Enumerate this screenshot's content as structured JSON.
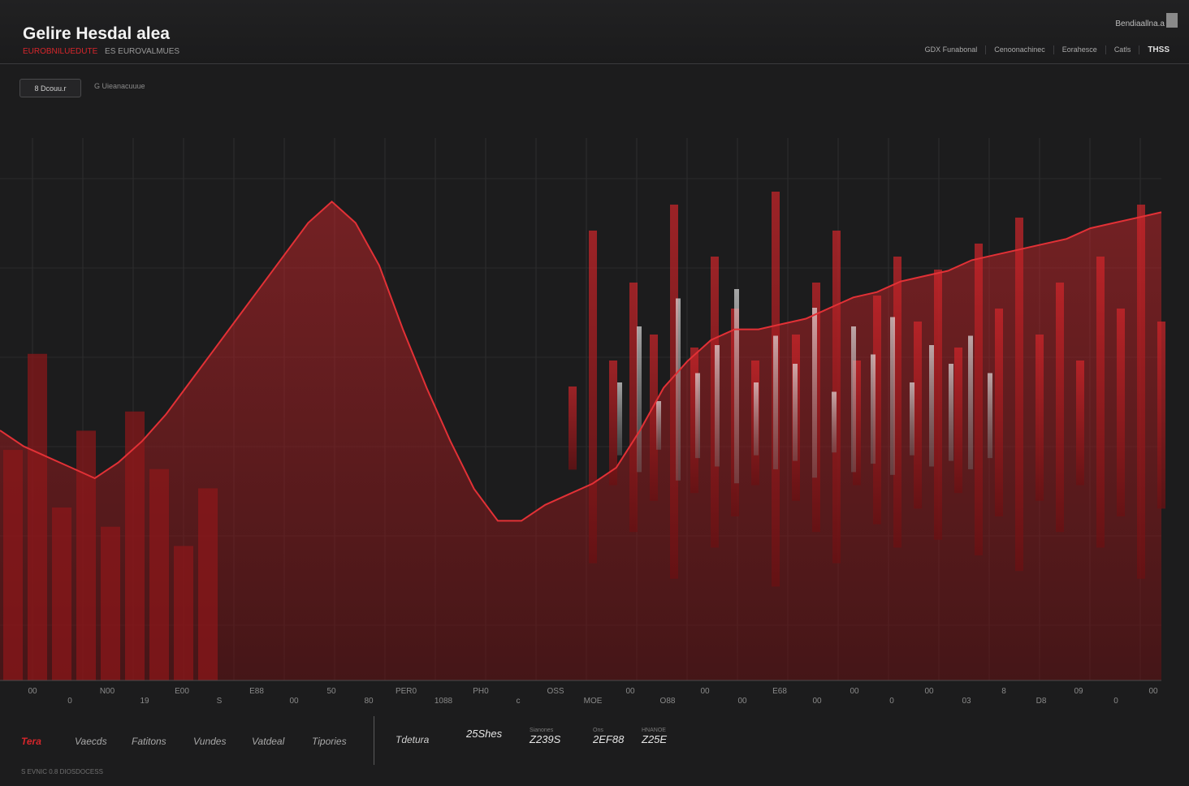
{
  "header": {
    "title": "Gelire Hesdal alea",
    "subtitle_red": "EUROBNILUEDUTE",
    "subtitle": "ES EUROVALMUES",
    "top_right": "Bendiaallna.a",
    "nav": [
      "GDX Funabonal",
      "Cenoonachinec",
      "Eorahesce",
      "Catls"
    ],
    "badge": "THSS"
  },
  "controls": {
    "filter_button": "8 Dcouu.r",
    "filter_label": "G Uieanacuuue"
  },
  "colors": {
    "background": "#1c1c1d",
    "accent_red": "#d7262b",
    "dark_red": "#8f1719",
    "grey_series": "#c8c8c8"
  },
  "chart_data": {
    "type": "area",
    "x_tick_labels": [
      "00",
      "0",
      "N00",
      "19",
      "E00",
      "S",
      "E88",
      "00",
      "50",
      "80",
      "PER0",
      "1088",
      "PH0",
      "c",
      "OSS",
      "MOE",
      "00",
      "O88",
      "00",
      "00",
      "E68",
      "00",
      "00",
      "0",
      "00",
      "03",
      "8",
      "D8",
      "09",
      "0",
      "00"
    ],
    "grid": true,
    "legend": "none",
    "series": [
      {
        "color": "#d7262b",
        "style": "line",
        "values": [
          0.47,
          0.44,
          0.42,
          0.4,
          0.38,
          0.41,
          0.45,
          0.5,
          0.56,
          0.62,
          0.68,
          0.74,
          0.8,
          0.86,
          0.9,
          0.86,
          0.78,
          0.66,
          0.55,
          0.45,
          0.36,
          0.3,
          0.3,
          0.33,
          0.35,
          0.37,
          0.4,
          0.47,
          0.55,
          0.6,
          0.64,
          0.66,
          0.66,
          0.67,
          0.68,
          0.7,
          0.72,
          0.73,
          0.75,
          0.76,
          0.77,
          0.79,
          0.8,
          0.81,
          0.82,
          0.83,
          0.85,
          0.86,
          0.87,
          0.88
        ]
      },
      {
        "color": "#d7262b",
        "style": "spikes",
        "values": [
          0.2,
          0.8,
          0.3,
          0.6,
          0.4,
          0.9,
          0.35,
          0.7,
          0.5,
          0.3,
          0.95,
          0.4,
          0.6,
          0.8,
          0.3,
          0.55,
          0.7,
          0.45,
          0.65,
          0.35,
          0.75,
          0.5,
          0.85,
          0.4,
          0.6,
          0.3,
          0.7,
          0.5,
          0.9,
          0.45
        ]
      },
      {
        "color": "#c8c8c8",
        "style": "spikes",
        "values": [
          0.3,
          0.6,
          0.2,
          0.75,
          0.35,
          0.5,
          0.8,
          0.3,
          0.55,
          0.4,
          0.7,
          0.25,
          0.6,
          0.45,
          0.65,
          0.3,
          0.5,
          0.4,
          0.55,
          0.35
        ]
      }
    ]
  },
  "categories": [
    "Tera",
    "Vaecds",
    "Fatitons",
    "Vundes",
    "Vatdeal",
    "Tipories"
  ],
  "stats": {
    "label": "Tdetura",
    "items": [
      {
        "caption": "",
        "value": "25Shes"
      },
      {
        "caption": "Sianones",
        "value": "Z239S"
      },
      {
        "caption": "Ons",
        "value": "2EF88"
      },
      {
        "caption": "HNANOE",
        "value": "Z25E"
      }
    ]
  },
  "footer": "S EVNIC 0.8 DIOSDOCESS"
}
